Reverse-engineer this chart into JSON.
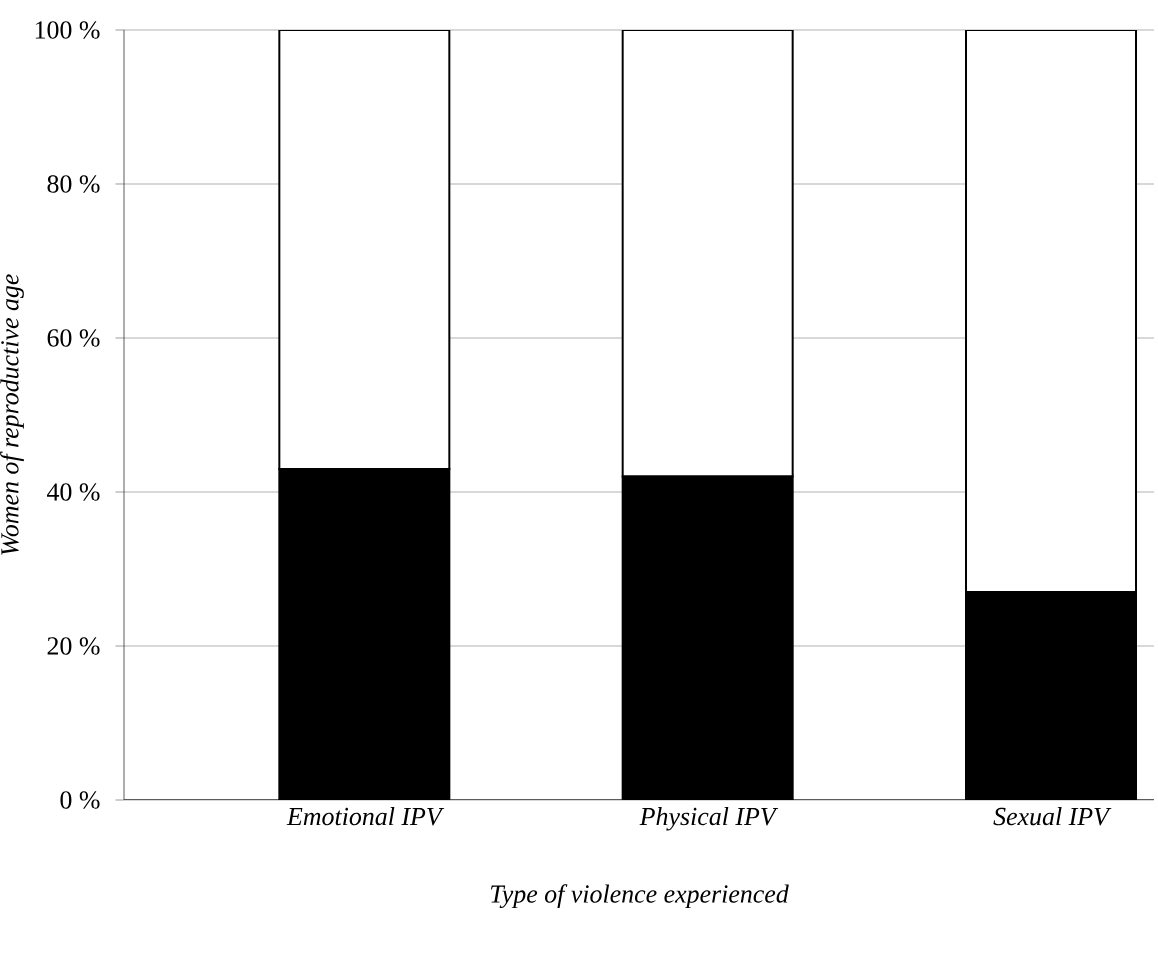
{
  "chart_data": {
    "type": "bar",
    "stacked": true,
    "xlabel": "Type of violence experienced",
    "ylabel": "Women of reproductive age",
    "categories": [
      "Emotional IPV",
      "Physical IPV",
      "Sexual IPV"
    ],
    "series": [
      {
        "color": "#000000",
        "values": [
          43,
          42,
          27
        ]
      },
      {
        "color": "#ffffff",
        "values": [
          57,
          58,
          73
        ]
      }
    ],
    "ylim": [
      0,
      100
    ],
    "yticks": [
      {
        "value": 0,
        "label": "0 %"
      },
      {
        "value": 20,
        "label": "20 %"
      },
      {
        "value": 40,
        "label": "40 %"
      },
      {
        "value": 60,
        "label": "60 %"
      },
      {
        "value": 80,
        "label": "80 %"
      },
      {
        "value": 100,
        "label": "100 %"
      }
    ],
    "grid": "y"
  }
}
